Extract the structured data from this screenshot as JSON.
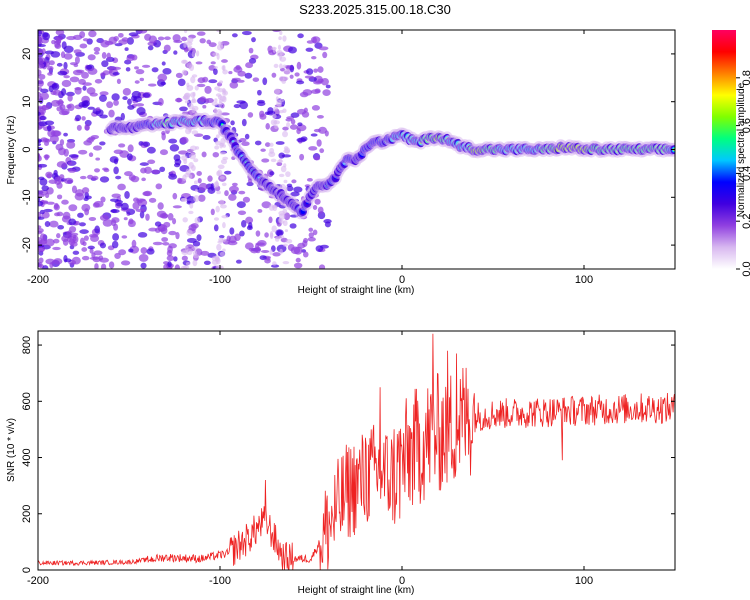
{
  "title": "S233.2025.315.00.18.C30",
  "chart_data": [
    {
      "type": "heatmap",
      "xlabel": "Height of straight line (km)",
      "ylabel": "Frequency (Hz)",
      "xlim": [
        -200,
        150
      ],
      "ylim": [
        -25,
        25
      ],
      "xticks": [
        -200,
        -100,
        0,
        100
      ],
      "xtick_labels": [
        "-200",
        "-100",
        "0",
        "100"
      ],
      "yticks": [
        -20,
        -10,
        0,
        10,
        20
      ],
      "ytick_labels": [
        "-20",
        "-10",
        "0",
        "10",
        "20"
      ],
      "colorbar": {
        "label": "Normalized spectral amplitude",
        "range": [
          0,
          1
        ],
        "ticks": [
          0.0,
          0.2,
          0.4,
          0.6,
          0.8
        ],
        "tick_labels": [
          "0.0",
          "0.2",
          "0.4",
          "0.6",
          "0.8"
        ],
        "colors": [
          "#ffffff",
          "#d8b8f0",
          "#9040e0",
          "#4000e0",
          "#0000ff",
          "#00c8ff",
          "#00ff80",
          "#80ff00",
          "#ffff00",
          "#ff8000",
          "#ff0000",
          "#ff0060"
        ]
      },
      "ridge": [
        {
          "x": -160,
          "y": 4.5,
          "amp": 0.35
        },
        {
          "x": -150,
          "y": 4.5,
          "amp": 0.4
        },
        {
          "x": -140,
          "y": 5.0,
          "amp": 0.45
        },
        {
          "x": -130,
          "y": 5.5,
          "amp": 0.7
        },
        {
          "x": -120,
          "y": 5.8,
          "amp": 0.6
        },
        {
          "x": -110,
          "y": 6.0,
          "amp": 0.55
        },
        {
          "x": -100,
          "y": 5.5,
          "amp": 0.5
        },
        {
          "x": -95,
          "y": 3.0,
          "amp": 0.35
        },
        {
          "x": -90,
          "y": -0.5,
          "amp": 0.45
        },
        {
          "x": -85,
          "y": -3.0,
          "amp": 0.5
        },
        {
          "x": -80,
          "y": -5.5,
          "amp": 0.45
        },
        {
          "x": -75,
          "y": -7.0,
          "amp": 0.4
        },
        {
          "x": -70,
          "y": -8.5,
          "amp": 0.35
        },
        {
          "x": -65,
          "y": -10.0,
          "amp": 0.35
        },
        {
          "x": -60,
          "y": -11.5,
          "amp": 0.4
        },
        {
          "x": -55,
          "y": -13.0,
          "amp": 0.45
        },
        {
          "x": -48,
          "y": -8.0,
          "amp": 0.35
        },
        {
          "x": -40,
          "y": -7.0,
          "amp": 0.45
        },
        {
          "x": -35,
          "y": -5.0,
          "amp": 0.4
        },
        {
          "x": -30,
          "y": -1.5,
          "amp": 0.45
        },
        {
          "x": -25,
          "y": -2.0,
          "amp": 0.4
        },
        {
          "x": -20,
          "y": 0.0,
          "amp": 0.45
        },
        {
          "x": -15,
          "y": 2.0,
          "amp": 0.5
        },
        {
          "x": -10,
          "y": 1.5,
          "amp": 0.5
        },
        {
          "x": -5,
          "y": 2.5,
          "amp": 0.55
        },
        {
          "x": 0,
          "y": 3.0,
          "amp": 0.55
        },
        {
          "x": 5,
          "y": 2.0,
          "amp": 0.6
        },
        {
          "x": 10,
          "y": 1.5,
          "amp": 0.65
        },
        {
          "x": 15,
          "y": 2.5,
          "amp": 0.75
        },
        {
          "x": 20,
          "y": 2.5,
          "amp": 0.8
        },
        {
          "x": 25,
          "y": 2.0,
          "amp": 0.65
        },
        {
          "x": 30,
          "y": 1.0,
          "amp": 0.6
        },
        {
          "x": 35,
          "y": 0.5,
          "amp": 0.55
        },
        {
          "x": 40,
          "y": 0.0,
          "amp": 0.85
        },
        {
          "x": 50,
          "y": 0.0,
          "amp": 0.7
        },
        {
          "x": 60,
          "y": 0.0,
          "amp": 0.6
        },
        {
          "x": 70,
          "y": 0.0,
          "amp": 0.55
        },
        {
          "x": 80,
          "y": 0.0,
          "amp": 0.75
        },
        {
          "x": 90,
          "y": 0.5,
          "amp": 0.85
        },
        {
          "x": 100,
          "y": 0.0,
          "amp": 0.8
        },
        {
          "x": 110,
          "y": 0.0,
          "amp": 0.75
        },
        {
          "x": 120,
          "y": 0.0,
          "amp": 0.7
        },
        {
          "x": 130,
          "y": 0.0,
          "amp": 0.75
        },
        {
          "x": 140,
          "y": 0.0,
          "amp": 0.7
        },
        {
          "x": 150,
          "y": 0.0,
          "amp": 0.65
        }
      ]
    },
    {
      "type": "line",
      "xlabel": "Height of straight line (km)",
      "ylabel": "SNR (10 * v/v)",
      "xlim": [
        -200,
        150
      ],
      "ylim": [
        0,
        850
      ],
      "xticks": [
        -200,
        -100,
        0,
        100
      ],
      "xtick_labels": [
        "-200",
        "-100",
        "0",
        "100"
      ],
      "yticks": [
        0,
        200,
        400,
        600,
        800
      ],
      "ytick_labels": [
        "0",
        "200",
        "400",
        "600",
        "800"
      ],
      "color": "#ee2222",
      "envelope": [
        {
          "x": -200,
          "y": 25
        },
        {
          "x": -180,
          "y": 25
        },
        {
          "x": -150,
          "y": 28
        },
        {
          "x": -130,
          "y": 45
        },
        {
          "x": -110,
          "y": 40
        },
        {
          "x": -95,
          "y": 60
        },
        {
          "x": -85,
          "y": 110
        },
        {
          "x": -75,
          "y": 180
        },
        {
          "x": -65,
          "y": 40
        },
        {
          "x": -50,
          "y": 40
        },
        {
          "x": -40,
          "y": 160
        },
        {
          "x": -30,
          "y": 280
        },
        {
          "x": -15,
          "y": 350
        },
        {
          "x": -5,
          "y": 330
        },
        {
          "x": 5,
          "y": 420
        },
        {
          "x": 15,
          "y": 470
        },
        {
          "x": 25,
          "y": 500
        },
        {
          "x": 35,
          "y": 540
        },
        {
          "x": 50,
          "y": 555
        },
        {
          "x": 70,
          "y": 560
        },
        {
          "x": 90,
          "y": 565
        },
        {
          "x": 110,
          "y": 570
        },
        {
          "x": 130,
          "y": 575
        },
        {
          "x": 150,
          "y": 575
        }
      ],
      "peaks": [
        {
          "x": -75,
          "y": 320
        },
        {
          "x": -20,
          "y": 470
        },
        {
          "x": -12,
          "y": 650
        },
        {
          "x": 17,
          "y": 840
        },
        {
          "x": 25,
          "y": 780
        },
        {
          "x": 30,
          "y": 770
        },
        {
          "x": 88,
          "y": 390
        }
      ]
    }
  ]
}
